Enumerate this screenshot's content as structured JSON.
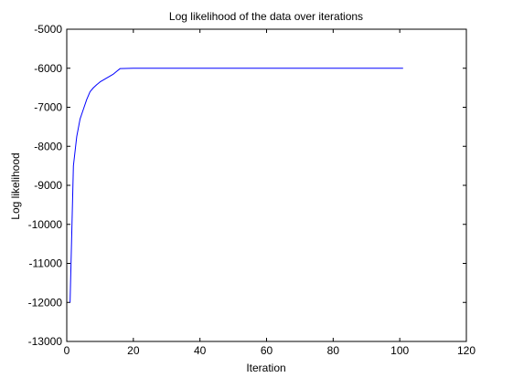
{
  "chart_data": {
    "type": "line",
    "title": "Log likelihood of the data over iterations",
    "xlabel": "Iteration",
    "ylabel": "Log likelihood",
    "xlim": [
      0,
      120
    ],
    "ylim": [
      -13000,
      -5000
    ],
    "xticks": [
      0,
      20,
      40,
      60,
      80,
      100,
      120
    ],
    "yticks": [
      -13000,
      -12000,
      -11000,
      -10000,
      -9000,
      -8000,
      -7000,
      -6000,
      -5000
    ],
    "xtick_labels": [
      "0",
      "20",
      "40",
      "60",
      "80",
      "100",
      "120"
    ],
    "ytick_labels": [
      "-13000",
      "-12000",
      "-11000",
      "-10000",
      "-9000",
      "-8000",
      "-7000",
      "-6000",
      "-5000"
    ],
    "grid": false,
    "legend": "none",
    "series": [
      {
        "color": "#0000ff",
        "x": [
          1,
          2,
          3,
          4,
          5,
          6,
          7,
          8,
          9,
          10,
          11,
          12,
          13,
          14,
          15,
          16,
          20,
          30,
          40,
          50,
          60,
          70,
          80,
          90,
          100,
          101
        ],
        "y": [
          -12000,
          -8500,
          -7750,
          -7300,
          -7050,
          -6800,
          -6600,
          -6500,
          -6420,
          -6350,
          -6300,
          -6250,
          -6200,
          -6150,
          -6080,
          -6010,
          -6000,
          -6000,
          -6000,
          -6000,
          -6000,
          -6000,
          -6000,
          -6000,
          -6000,
          -6000
        ]
      }
    ]
  }
}
